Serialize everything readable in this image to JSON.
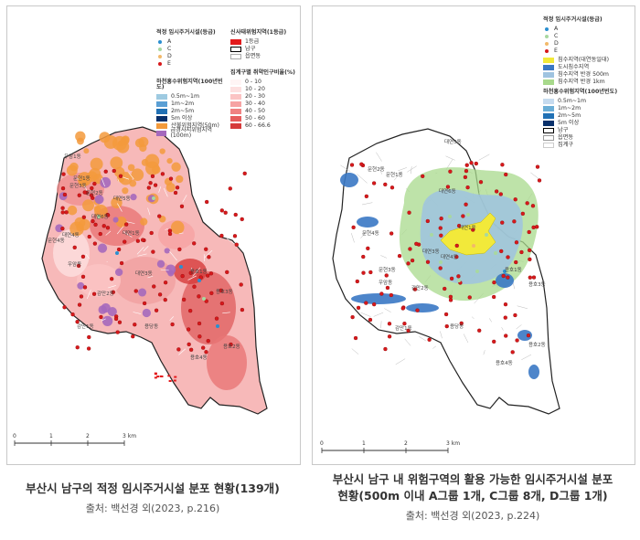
{
  "left_panel": {
    "legend_a": {
      "title": "적정 임시주거시설(등급)",
      "grades": [
        {
          "label": "A",
          "color": "#2b8fd0"
        },
        {
          "label": "C",
          "color": "#a8d8a0"
        },
        {
          "label": "D",
          "color": "#f2b96a"
        },
        {
          "label": "E",
          "color": "#d7191c"
        }
      ]
    },
    "legend_b": {
      "title": "신사태위험지역(1등급)",
      "items": [
        {
          "label": "1등급",
          "color": "#e31a1c"
        },
        {
          "label": "남구",
          "color": "#ffffff",
          "border": "#000000"
        },
        {
          "label": "읍면동",
          "color": "#ffffff",
          "border": "#aaaaaa"
        }
      ]
    },
    "legend_c": {
      "title": "하천홍수위험지역(100년빈도)",
      "items": [
        {
          "label": "0.5m~1m",
          "color": "#9ecae1"
        },
        {
          "label": "1m~2m",
          "color": "#5a9fd4"
        },
        {
          "label": "2m~5m",
          "color": "#2171b5"
        },
        {
          "label": "5m 이상",
          "color": "#08306b"
        },
        {
          "label": "산불위험지역(50m)",
          "color": "#f39a3c"
        },
        {
          "label": "급경사지위험지역(100m)",
          "color": "#a569bd"
        }
      ]
    },
    "legend_d": {
      "title": "집계구별 취약인구비율(%)",
      "items": [
        {
          "label": "0 - 10",
          "color": "#fff5f5"
        },
        {
          "label": "10 - 20",
          "color": "#fde0e0"
        },
        {
          "label": "20 - 30",
          "color": "#fbc4c4"
        },
        {
          "label": "30 - 40",
          "color": "#f6a3a3"
        },
        {
          "label": "40 - 50",
          "color": "#f08282"
        },
        {
          "label": "50 - 60",
          "color": "#e65c5c"
        },
        {
          "label": "60 - 66.6",
          "color": "#d63b3b"
        }
      ]
    },
    "place_labels": [
      "우암1동",
      "문현1동",
      "문현2동",
      "문현3동",
      "대연5동",
      "대연6동",
      "대연1동",
      "대연4동",
      "문현4동",
      "우암동",
      "감만2동",
      "감만1동",
      "용당동",
      "용호1동",
      "용호3동",
      "용호2동",
      "용호4동",
      "대연3동"
    ],
    "scale": {
      "ticks": [
        "0",
        "1",
        "2",
        "3 km"
      ]
    }
  },
  "right_panel": {
    "legend": {
      "title": "적정 임시주거시설(등급)",
      "grades": [
        {
          "label": "A",
          "color": "#2b8fd0"
        },
        {
          "label": "C",
          "color": "#a8d8a0"
        },
        {
          "label": "D",
          "color": "#f2b96a"
        },
        {
          "label": "E",
          "color": "#d7191c"
        }
      ],
      "zones": [
        {
          "label": "침수지역(대연동일대)",
          "color": "#f2e93a"
        },
        {
          "label": "도시침수지역",
          "color": "#3a78c4"
        },
        {
          "label": "침수지역 반경 500m",
          "color": "#9fc3e0"
        },
        {
          "label": "침수지역 반경 1km",
          "color": "#a8d98c"
        }
      ],
      "flood_title": "하천홍수위험지역(100년빈도)",
      "flood": [
        {
          "label": "0.5m~1m",
          "color": "#c6dbef"
        },
        {
          "label": "1m~2m",
          "color": "#6baed6"
        },
        {
          "label": "2m~5m",
          "color": "#2171b5"
        },
        {
          "label": "5m 이상",
          "color": "#08306b"
        }
      ],
      "boundaries": [
        {
          "label": "남구",
          "color": "#ffffff",
          "border": "#000000"
        },
        {
          "label": "읍면동",
          "color": "#ffffff",
          "border": "#999999"
        },
        {
          "label": "집계구",
          "color": "#ffffff",
          "border": "#cccccc"
        }
      ]
    },
    "place_labels": [
      "대연5동",
      "문현2동",
      "문현1동",
      "대연6동",
      "대연1동",
      "문현4동",
      "대연4동",
      "문현3동",
      "우암동",
      "감만2동",
      "감만1동",
      "용당동",
      "용호1동",
      "용호3동",
      "용호2동",
      "용호4동",
      "대연3동"
    ],
    "scale": {
      "ticks": [
        "0",
        "1",
        "2",
        "3 km"
      ]
    }
  },
  "captions": {
    "left_title": "부산시 남구의 적정 임시주거시설 분포 현황(139개)",
    "left_source": "출처: 백선경 외(2023, p.216)",
    "right_title_line1": "부산시 남구 내 위험구역의 활용 가능한 임시주거시설 분포",
    "right_title_line2": "현황(500m 이내 A그룹 1개, C그룹 8개, D그룹 1개)",
    "right_source": "출처: 백선경 외(2023, p.224)"
  }
}
